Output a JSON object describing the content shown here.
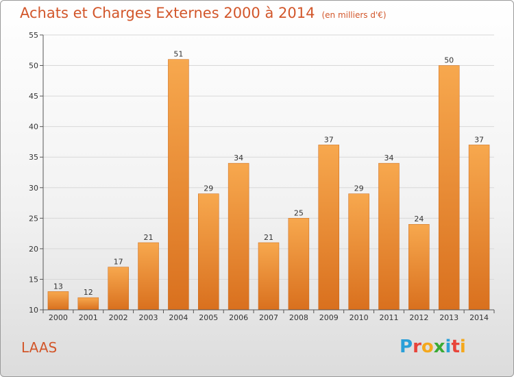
{
  "header": {
    "title": "Achats et Charges Externes 2000 à 2014",
    "subtitle": "(en milliers d'€)"
  },
  "footer": {
    "place": "LAAS",
    "logo_text": "Proxiti"
  },
  "chart_data": {
    "type": "bar",
    "title": "Achats et Charges Externes 2000 à 2014",
    "subtitle": "(en milliers d'€)",
    "categories": [
      "2000",
      "2001",
      "2002",
      "2003",
      "2004",
      "2005",
      "2006",
      "2007",
      "2008",
      "2009",
      "2010",
      "2011",
      "2012",
      "2013",
      "2014"
    ],
    "values": [
      13,
      12,
      17,
      21,
      51,
      29,
      34,
      21,
      25,
      37,
      29,
      34,
      24,
      50,
      37
    ],
    "ylim": [
      10,
      55
    ],
    "yticks": [
      10,
      15,
      20,
      25,
      30,
      35,
      40,
      45,
      50,
      55
    ],
    "grid": true,
    "colors": {
      "bar_light": "#f7a84e",
      "bar_dark": "#d9701e",
      "grid": "#d8d8d8",
      "title": "#d2562a"
    }
  }
}
